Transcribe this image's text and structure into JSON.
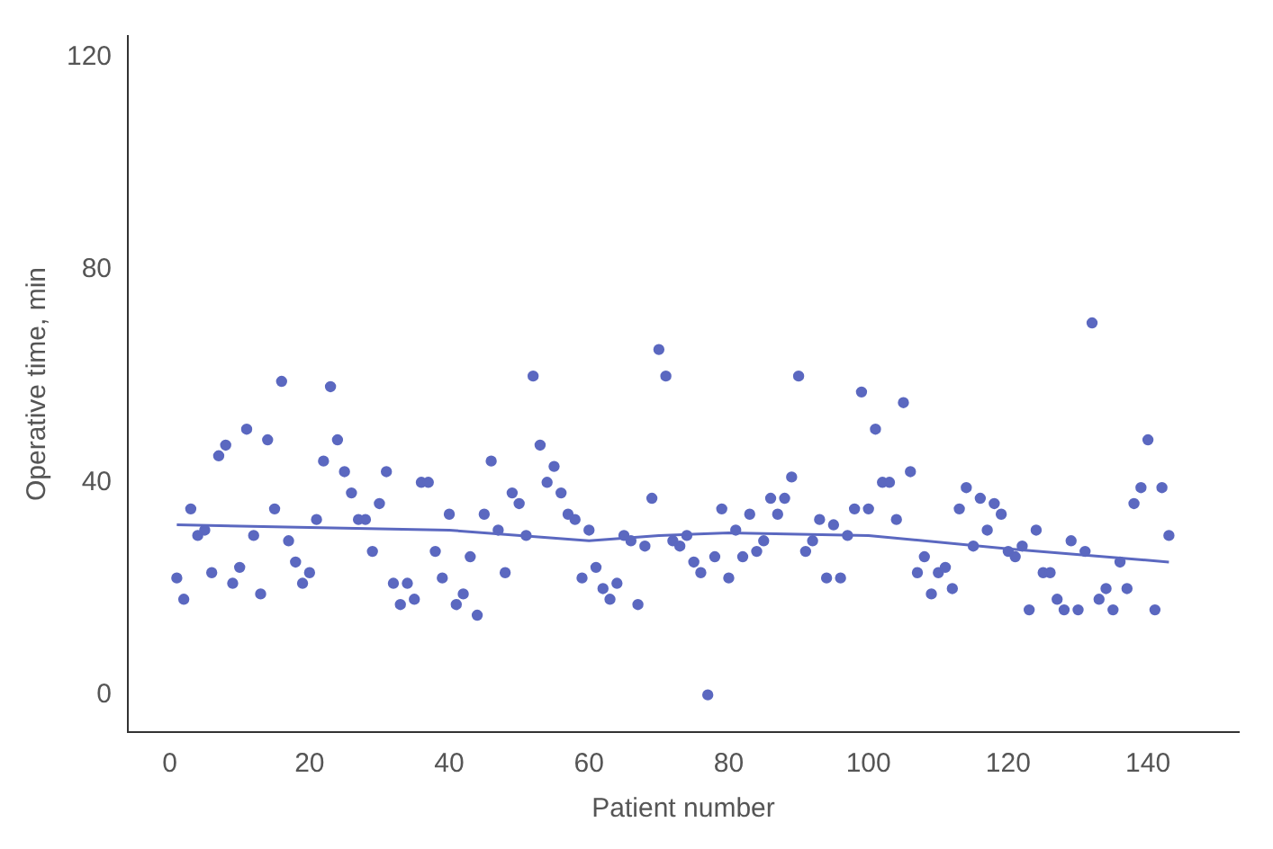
{
  "chart_data": {
    "type": "scatter",
    "xlabel": "Patient number",
    "ylabel": "Operative time, min",
    "xlim": [
      -6,
      153
    ],
    "xticks": [
      0,
      20,
      40,
      60,
      80,
      100,
      120,
      140
    ],
    "ylim": [
      -7,
      124
    ],
    "yticks": [
      0,
      40,
      80,
      120
    ],
    "grid": false,
    "legend": false,
    "marker": "circle",
    "series": [
      {
        "color": "#5b68c0",
        "x": [
          1,
          2,
          3,
          4,
          5,
          6,
          7,
          8,
          9,
          10,
          11,
          12,
          13,
          14,
          15,
          16,
          17,
          18,
          19,
          20,
          21,
          22,
          23,
          24,
          25,
          26,
          27,
          28,
          29,
          30,
          31,
          32,
          33,
          34,
          35,
          36,
          37,
          38,
          39,
          40,
          41,
          42,
          43,
          44,
          45,
          46,
          47,
          48,
          49,
          50,
          51,
          52,
          53,
          54,
          55,
          56,
          57,
          58,
          59,
          60,
          61,
          62,
          63,
          64,
          65,
          66,
          67,
          68,
          69,
          70,
          71,
          72,
          73,
          74,
          75,
          76,
          77,
          78,
          79,
          80,
          81,
          82,
          83,
          84,
          85,
          86,
          87,
          88,
          89,
          90,
          91,
          92,
          93,
          94,
          95,
          96,
          97,
          98,
          99,
          100,
          101,
          102,
          103,
          104,
          105,
          106,
          107,
          108,
          109,
          110,
          111,
          112,
          113,
          114,
          115,
          116,
          117,
          118,
          119,
          120,
          121,
          122,
          123,
          124,
          125,
          126,
          127,
          128,
          129,
          130,
          131,
          132,
          133,
          134,
          135,
          136,
          137,
          138,
          139,
          140,
          141,
          142,
          143
        ],
        "values": [
          22,
          18,
          35,
          30,
          31,
          23,
          45,
          47,
          21,
          24,
          50,
          30,
          19,
          48,
          35,
          59,
          29,
          25,
          21,
          23,
          33,
          44,
          58,
          48,
          42,
          38,
          33,
          33,
          27,
          36,
          42,
          21,
          17,
          21,
          18,
          40,
          40,
          27,
          22,
          34,
          17,
          19,
          26,
          15,
          34,
          44,
          31,
          23,
          38,
          36,
          30,
          60,
          47,
          40,
          43,
          38,
          34,
          33,
          22,
          31,
          24,
          20,
          18,
          21,
          30,
          29,
          17,
          28,
          37,
          65,
          60,
          29,
          28,
          30,
          25,
          23,
          0,
          26,
          35,
          22,
          31,
          26,
          34,
          27,
          29,
          37,
          34,
          37,
          41,
          60,
          27,
          29,
          33,
          22,
          32,
          22,
          30,
          35,
          57,
          35,
          50,
          40,
          40,
          33,
          55,
          42,
          23,
          26,
          19,
          23,
          24,
          20,
          35,
          39,
          28,
          37,
          31,
          36,
          34,
          27,
          26,
          28,
          16,
          31,
          23,
          23,
          18,
          16,
          29,
          16,
          27,
          70,
          18,
          20,
          16,
          25,
          20,
          36,
          39,
          48,
          16,
          39,
          30
        ]
      },
      {
        "type": "line",
        "color": "#5b68c0",
        "marker": "none",
        "line_style": "solid",
        "x": [
          1,
          20,
          40,
          60,
          70,
          80,
          100,
          120,
          143
        ],
        "values": [
          32,
          31.5,
          31,
          29,
          30,
          30.5,
          30,
          27.5,
          25
        ]
      }
    ]
  }
}
